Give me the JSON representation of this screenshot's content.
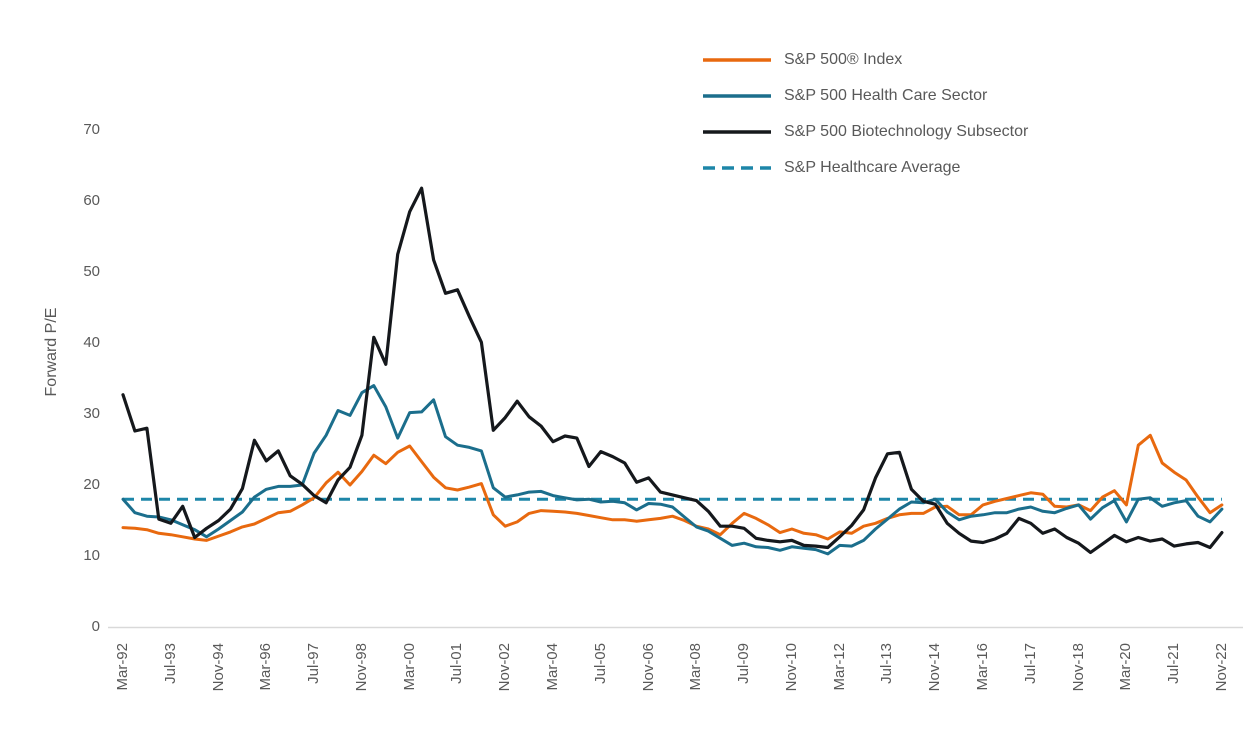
{
  "colors": {
    "sp500": "#E8690F",
    "healthcare": "#1B6E8C",
    "biotech": "#15181C",
    "average": "#1D86A8",
    "axis_line": "#D9D9D9",
    "label_text": "#595959",
    "background": "#FFFFFF"
  },
  "chart_data": {
    "type": "line",
    "title": "",
    "xlabel": "",
    "ylabel": "Forward P/E",
    "ylim": [
      0,
      70
    ],
    "y_ticks": [
      0,
      10,
      20,
      30,
      40,
      50,
      60,
      70
    ],
    "grid": false,
    "legend_position": "top-right-inside",
    "x_tick_labels": [
      "Mar-92",
      "Jul-93",
      "Nov-94",
      "Mar-96",
      "Jul-97",
      "Nov-98",
      "Mar-00",
      "Jul-01",
      "Nov-02",
      "Mar-04",
      "Jul-05",
      "Nov-06",
      "Mar-08",
      "Jul-09",
      "Nov-10",
      "Mar-12",
      "Jul-13",
      "Nov-14",
      "Mar-16",
      "Jul-17",
      "Nov-18",
      "Mar-20",
      "Jul-21",
      "Nov-22"
    ],
    "x": [
      "Mar-92",
      "Jul-92",
      "Nov-92",
      "Mar-93",
      "Jul-93",
      "Nov-93",
      "Mar-94",
      "Jul-94",
      "Nov-94",
      "Mar-95",
      "Jul-95",
      "Nov-95",
      "Mar-96",
      "Jul-96",
      "Nov-96",
      "Mar-97",
      "Jul-97",
      "Nov-97",
      "Mar-98",
      "Jul-98",
      "Nov-98",
      "Mar-99",
      "Jul-99",
      "Nov-99",
      "Mar-00",
      "Jul-00",
      "Nov-00",
      "Mar-01",
      "Jul-01",
      "Nov-01",
      "Mar-02",
      "Jul-02",
      "Nov-02",
      "Mar-03",
      "Jul-03",
      "Nov-03",
      "Mar-04",
      "Jul-04",
      "Nov-04",
      "Mar-05",
      "Jul-05",
      "Nov-05",
      "Mar-06",
      "Jul-06",
      "Nov-06",
      "Mar-07",
      "Jul-07",
      "Nov-07",
      "Mar-08",
      "Jul-08",
      "Nov-08",
      "Mar-09",
      "Jul-09",
      "Nov-09",
      "Mar-10",
      "Jul-10",
      "Nov-10",
      "Mar-11",
      "Jul-11",
      "Nov-11",
      "Mar-12",
      "Jul-12",
      "Nov-12",
      "Mar-13",
      "Jul-13",
      "Nov-13",
      "Mar-14",
      "Jul-14",
      "Nov-14",
      "Mar-15",
      "Jul-15",
      "Nov-15",
      "Mar-16",
      "Jul-16",
      "Nov-16",
      "Mar-17",
      "Jul-17",
      "Nov-17",
      "Mar-18",
      "Jul-18",
      "Nov-18",
      "Mar-19",
      "Jul-19",
      "Nov-19",
      "Mar-20",
      "Jul-20",
      "Nov-20",
      "Mar-21",
      "Jul-21",
      "Nov-21",
      "Mar-22",
      "Jul-22",
      "Nov-22"
    ],
    "series": [
      {
        "name": "S&P 500® Index",
        "color": "#E8690F",
        "style": "solid",
        "values": [
          14.0,
          13.9,
          13.7,
          13.2,
          13.0,
          12.7,
          12.4,
          12.2,
          12.8,
          13.4,
          14.1,
          14.5,
          15.3,
          16.1,
          16.3,
          17.2,
          18.2,
          20.3,
          21.8,
          20.0,
          21.9,
          24.2,
          23.0,
          24.6,
          25.5,
          23.3,
          21.1,
          19.6,
          19.3,
          19.7,
          20.2,
          15.8,
          14.2,
          14.8,
          16.0,
          16.4,
          16.3,
          16.2,
          16.0,
          15.7,
          15.4,
          15.1,
          15.1,
          14.9,
          15.1,
          15.3,
          15.6,
          15.0,
          14.2,
          13.8,
          13.0,
          14.6,
          16.0,
          15.3,
          14.4,
          13.3,
          13.8,
          13.2,
          13.0,
          12.4,
          13.4,
          13.2,
          14.2,
          14.6,
          15.3,
          15.8,
          16.0,
          16.0,
          16.9,
          17.0,
          15.8,
          15.8,
          17.2,
          17.7,
          18.1,
          18.5,
          18.9,
          18.7,
          17.0,
          16.9,
          17.2,
          16.4,
          18.3,
          19.2,
          17.2,
          25.6,
          27.0,
          23.1,
          21.8,
          20.7,
          18.3,
          16.1,
          17.2
        ]
      },
      {
        "name": "S&P 500 Health Care Sector",
        "color": "#1B6E8C",
        "style": "solid",
        "values": [
          18.0,
          16.1,
          15.6,
          15.5,
          15.1,
          14.4,
          13.7,
          12.7,
          13.8,
          15.0,
          16.2,
          18.3,
          19.4,
          19.8,
          19.8,
          20.0,
          24.5,
          27.0,
          30.5,
          29.8,
          33.0,
          34.0,
          31.0,
          26.6,
          30.2,
          30.3,
          32.0,
          26.8,
          25.6,
          25.3,
          24.8,
          19.6,
          18.3,
          18.6,
          19.0,
          19.1,
          18.5,
          18.2,
          17.9,
          18.0,
          17.6,
          17.7,
          17.5,
          16.5,
          17.4,
          17.3,
          16.9,
          15.5,
          14.1,
          13.5,
          12.5,
          11.5,
          11.8,
          11.3,
          11.2,
          10.8,
          11.3,
          11.1,
          10.9,
          10.3,
          11.5,
          11.4,
          12.2,
          13.8,
          15.2,
          16.6,
          17.6,
          17.5,
          18.0,
          16.2,
          15.1,
          15.6,
          15.8,
          16.1,
          16.1,
          16.6,
          16.9,
          16.3,
          16.1,
          16.7,
          17.2,
          15.2,
          16.8,
          17.8,
          14.8,
          18.0,
          18.2,
          17.0,
          17.5,
          17.8,
          15.6,
          14.8,
          16.6
        ]
      },
      {
        "name": "S&P 500 Biotechnology Subsector",
        "color": "#15181C",
        "style": "solid",
        "values": [
          32.7,
          27.6,
          28.0,
          15.2,
          14.6,
          17.0,
          12.6,
          13.9,
          15.0,
          16.6,
          19.5,
          26.3,
          23.4,
          24.8,
          21.3,
          20.1,
          18.5,
          17.5,
          20.7,
          22.5,
          27.0,
          40.8,
          37.0,
          52.5,
          58.5,
          61.8,
          51.7,
          47.0,
          47.5,
          43.7,
          40.1,
          27.7,
          29.5,
          31.8,
          29.6,
          28.3,
          26.1,
          26.9,
          26.6,
          22.6,
          24.7,
          24.0,
          23.1,
          20.4,
          21.0,
          19.0,
          18.6,
          18.2,
          17.8,
          16.3,
          14.2,
          14.2,
          13.9,
          12.5,
          12.2,
          12.0,
          12.2,
          11.5,
          11.4,
          11.2,
          12.7,
          14.3,
          16.5,
          21.0,
          24.4,
          24.6,
          19.4,
          17.7,
          17.3,
          14.6,
          13.2,
          12.1,
          11.9,
          12.4,
          13.2,
          15.3,
          14.6,
          13.2,
          13.8,
          12.6,
          11.8,
          10.5,
          11.7,
          12.9,
          12.0,
          12.6,
          12.1,
          12.4,
          11.4,
          11.7,
          11.9,
          11.2,
          13.3
        ]
      },
      {
        "name": "S&P Healthcare Average",
        "color": "#1D86A8",
        "style": "dashed",
        "constant_value": 18.0,
        "values": [
          18.0,
          18.0,
          18.0,
          18.0,
          18.0,
          18.0,
          18.0,
          18.0,
          18.0,
          18.0,
          18.0,
          18.0,
          18.0,
          18.0,
          18.0,
          18.0,
          18.0,
          18.0,
          18.0,
          18.0,
          18.0,
          18.0,
          18.0,
          18.0,
          18.0,
          18.0,
          18.0,
          18.0,
          18.0,
          18.0,
          18.0,
          18.0,
          18.0,
          18.0,
          18.0,
          18.0,
          18.0,
          18.0,
          18.0,
          18.0,
          18.0,
          18.0,
          18.0,
          18.0,
          18.0,
          18.0,
          18.0,
          18.0,
          18.0,
          18.0,
          18.0,
          18.0,
          18.0,
          18.0,
          18.0,
          18.0,
          18.0,
          18.0,
          18.0,
          18.0,
          18.0,
          18.0,
          18.0,
          18.0,
          18.0,
          18.0,
          18.0,
          18.0,
          18.0,
          18.0,
          18.0,
          18.0,
          18.0,
          18.0,
          18.0,
          18.0,
          18.0,
          18.0,
          18.0,
          18.0,
          18.0,
          18.0,
          18.0,
          18.0,
          18.0,
          18.0,
          18.0,
          18.0,
          18.0,
          18.0,
          18.0,
          18.0,
          18.0
        ]
      }
    ]
  }
}
